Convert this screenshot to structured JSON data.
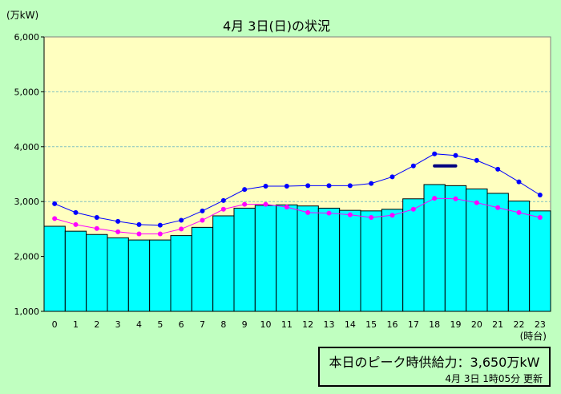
{
  "chart_data": {
    "type": "bar",
    "title": "4月  3日(日)の状況",
    "ylabel": "(万kW)",
    "xlabel": "(時台)",
    "ylim": [
      1000,
      6000
    ],
    "yticks": [
      "1,000",
      "2,000",
      "3,000",
      "4,000",
      "5,000",
      "6,000"
    ],
    "ytick_values": [
      1000,
      2000,
      3000,
      4000,
      5000,
      6000
    ],
    "categories": [
      "0",
      "1",
      "2",
      "3",
      "4",
      "5",
      "6",
      "7",
      "8",
      "9",
      "10",
      "11",
      "12",
      "13",
      "14",
      "15",
      "16",
      "17",
      "18",
      "19",
      "20",
      "21",
      "22",
      "23"
    ],
    "grid": true,
    "series": [
      {
        "type": "bar",
        "values": [
          2550,
          2460,
          2400,
          2340,
          2300,
          2300,
          2380,
          2530,
          2740,
          2880,
          2930,
          2940,
          2920,
          2880,
          2840,
          2830,
          2860,
          3050,
          3310,
          3290,
          3230,
          3150,
          3010,
          2830
        ],
        "color": "#00ffff"
      },
      {
        "type": "line",
        "values": [
          2960,
          2800,
          2710,
          2640,
          2580,
          2570,
          2660,
          2830,
          3020,
          3220,
          3280,
          3280,
          3290,
          3290,
          3290,
          3330,
          3450,
          3650,
          3870,
          3840,
          3750,
          3590,
          3360,
          3120
        ],
        "color": "#0000ff"
      },
      {
        "type": "line",
        "values": [
          2690,
          2580,
          2510,
          2450,
          2410,
          2410,
          2500,
          2660,
          2860,
          2950,
          2950,
          2900,
          2800,
          2790,
          2760,
          2710,
          2750,
          2860,
          3060,
          3050,
          2980,
          2890,
          2800,
          2710
        ],
        "color": "#ff00ff"
      }
    ],
    "supply_capacity": {
      "value": 3650,
      "x_range": [
        18.5,
        19.5
      ],
      "color": "#000080"
    },
    "plot_bg": "#ffffc0",
    "page_bg": "#c0ffc0"
  },
  "info": {
    "peak_label": "本日のピーク時供給力：3,650万kW",
    "updated": "4月  3日   1時05分 更新"
  }
}
